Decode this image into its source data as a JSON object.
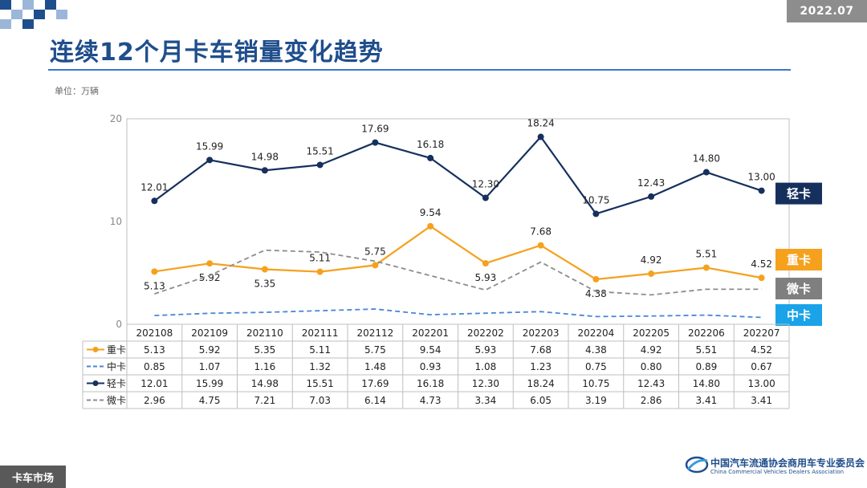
{
  "header": {
    "date": "2022.07",
    "title": "连续12个月卡车销量变化趋势",
    "unit": "单位：万辆"
  },
  "footer": {
    "section": "卡车市场",
    "org_cn": "中国汽车流通协会商用车专业委员会",
    "org_en": "China Commercial Vehicles Dealers Association"
  },
  "colors": {
    "heavy": "#f5a11d",
    "medium": "#4a86d6",
    "light": "#16305e",
    "micro": "#8c8c8c"
  },
  "chart_data": {
    "type": "line",
    "categories": [
      "202108",
      "202109",
      "202110",
      "202111",
      "202112",
      "202201",
      "202202",
      "202203",
      "202204",
      "202205",
      "202206",
      "202207"
    ],
    "ylim": [
      0,
      20
    ],
    "yticks": [
      0,
      10,
      20
    ],
    "series": [
      {
        "name": "重卡",
        "values": [
          5.13,
          5.92,
          5.35,
          5.11,
          5.75,
          9.54,
          5.93,
          7.68,
          4.38,
          4.92,
          5.51,
          4.52
        ],
        "color": "#f5a11d",
        "style": "solid",
        "marker": "circle",
        "label_bg": "#f5a11d"
      },
      {
        "name": "中卡",
        "values": [
          0.85,
          1.07,
          1.16,
          1.32,
          1.48,
          0.93,
          1.08,
          1.23,
          0.75,
          0.8,
          0.89,
          0.67
        ],
        "color": "#4a86d6",
        "style": "dashed",
        "marker": "none",
        "label_bg": "#1aa3e8"
      },
      {
        "name": "轻卡",
        "values": [
          12.01,
          15.99,
          14.98,
          15.51,
          17.69,
          16.18,
          12.3,
          18.24,
          10.75,
          12.43,
          14.8,
          13.0
        ],
        "color": "#16305e",
        "style": "solid",
        "marker": "circle",
        "label_bg": "#16305e"
      },
      {
        "name": "微卡",
        "values": [
          2.96,
          4.75,
          7.21,
          7.03,
          6.14,
          4.73,
          3.34,
          6.05,
          3.19,
          2.86,
          3.41,
          3.41
        ],
        "color": "#8c8c8c",
        "style": "dashed",
        "marker": "none",
        "label_bg": "#7f7f7f"
      }
    ],
    "table_row_order": [
      0,
      1,
      2,
      3
    ],
    "label_order": [
      2,
      0,
      3,
      1
    ]
  }
}
